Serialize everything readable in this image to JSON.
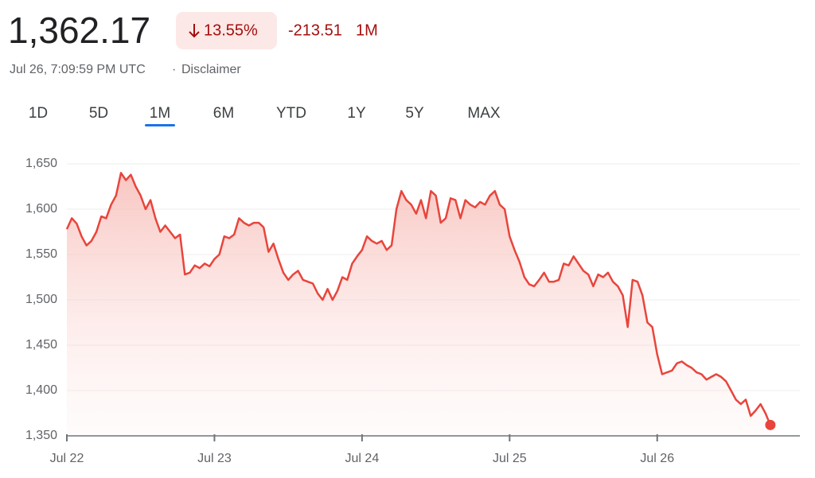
{
  "header": {
    "price": "1,362.17",
    "change_percent": "13.55%",
    "change": "-213.51",
    "period": "1M",
    "timestamp": "Jul 26, 7:09:59 PM UTC",
    "separator": "·",
    "disclaimer": "Disclaimer"
  },
  "tabs": {
    "items": [
      "1D",
      "5D",
      "1M",
      "6M",
      "YTD",
      "1Y",
      "5Y",
      "MAX"
    ],
    "active": 2
  },
  "chart_data": {
    "type": "line",
    "series": [
      {
        "color": "#e8453c",
        "values": [
          1578,
          1590,
          1584,
          1570,
          1560,
          1565,
          1575,
          1592,
          1590,
          1605,
          1615,
          1640,
          1632,
          1638,
          1625,
          1615,
          1600,
          1610,
          1590,
          1575,
          1582,
          1575,
          1568,
          1572,
          1528,
          1530,
          1538,
          1535,
          1540,
          1537,
          1545,
          1550,
          1570,
          1568,
          1572,
          1590,
          1585,
          1582,
          1585,
          1585,
          1580,
          1553,
          1562,
          1545,
          1530,
          1522,
          1528,
          1532,
          1522,
          1520,
          1518,
          1507,
          1500,
          1512,
          1500,
          1510,
          1525,
          1522,
          1540,
          1548,
          1555,
          1570,
          1565,
          1562,
          1565,
          1555,
          1560,
          1600,
          1620,
          1610,
          1605,
          1595,
          1610,
          1590,
          1620,
          1615,
          1585,
          1590,
          1612,
          1610,
          1590,
          1610,
          1605,
          1602,
          1608,
          1605,
          1615,
          1620,
          1605,
          1600,
          1570,
          1555,
          1542,
          1525,
          1517,
          1515,
          1522,
          1530,
          1520,
          1520,
          1522,
          1540,
          1538,
          1548,
          1540,
          1532,
          1528,
          1515,
          1528,
          1525,
          1530,
          1520,
          1515,
          1505,
          1470,
          1522,
          1520,
          1505,
          1475,
          1470,
          1440,
          1418,
          1420,
          1422,
          1430,
          1432,
          1428,
          1425,
          1420,
          1418,
          1412,
          1415,
          1418,
          1415,
          1410,
          1400,
          1390,
          1385,
          1390,
          1372,
          1378,
          1385,
          1375,
          1362
        ]
      }
    ],
    "xlim": [
      0,
      149
    ],
    "xticks": [
      {
        "value": 0,
        "label": "Jul 22"
      },
      {
        "value": 30,
        "label": "Jul 23"
      },
      {
        "value": 60,
        "label": "Jul 24"
      },
      {
        "value": 90,
        "label": "Jul 25"
      },
      {
        "value": 120,
        "label": "Jul 26"
      }
    ],
    "ylim": [
      1350,
      1650
    ],
    "yticks": [
      {
        "value": 1350,
        "label": "1,350"
      },
      {
        "value": 1400,
        "label": "1,400"
      },
      {
        "value": 1450,
        "label": "1,450"
      },
      {
        "value": 1500,
        "label": "1,500"
      },
      {
        "value": 1550,
        "label": "1,550"
      },
      {
        "value": 1600,
        "label": "1,600"
      },
      {
        "value": 1650,
        "label": "1,650"
      }
    ],
    "grid": true
  }
}
